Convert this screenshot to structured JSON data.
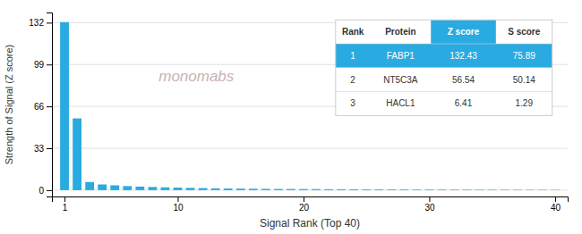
{
  "chart_data": {
    "type": "bar",
    "xlabel": "Signal Rank (Top 40)",
    "ylabel": "Strength of Signal (Z score)",
    "x": [
      1,
      2,
      3,
      4,
      5,
      6,
      7,
      8,
      9,
      10,
      11,
      12,
      13,
      14,
      15,
      16,
      17,
      18,
      19,
      20,
      21,
      22,
      23,
      24,
      25,
      26,
      27,
      28,
      29,
      30,
      31,
      32,
      33,
      34,
      35,
      36,
      37,
      38,
      39,
      40
    ],
    "values": [
      132.43,
      56.54,
      6.41,
      4.5,
      3.8,
      3.2,
      2.8,
      2.5,
      2.2,
      2.0,
      1.8,
      1.6,
      1.4,
      1.3,
      1.2,
      1.1,
      1.0,
      0.95,
      0.9,
      0.85,
      0.8,
      0.75,
      0.7,
      0.65,
      0.6,
      0.58,
      0.55,
      0.52,
      0.5,
      0.48,
      0.45,
      0.43,
      0.41,
      0.39,
      0.37,
      0.35,
      0.33,
      0.31,
      0.29,
      0.27
    ],
    "color": "#29ABE2",
    "xlim": [
      0,
      41
    ],
    "xticks": [
      1,
      10,
      20,
      30,
      40
    ],
    "ylim": [
      -5,
      140
    ],
    "yticks": [
      0,
      33,
      66,
      99,
      132
    ],
    "grid": true,
    "annotations": [
      "monomabs"
    ],
    "table": {
      "columns": [
        "Rank",
        "Protein",
        "Z score",
        "S score"
      ],
      "rows": [
        [
          "1",
          "FABP1",
          "132.43",
          "75.89"
        ],
        [
          "2",
          "NT5C3A",
          "56.54",
          "50.14"
        ],
        [
          "3",
          "HACL1",
          "6.41",
          "1.29"
        ]
      ]
    }
  }
}
